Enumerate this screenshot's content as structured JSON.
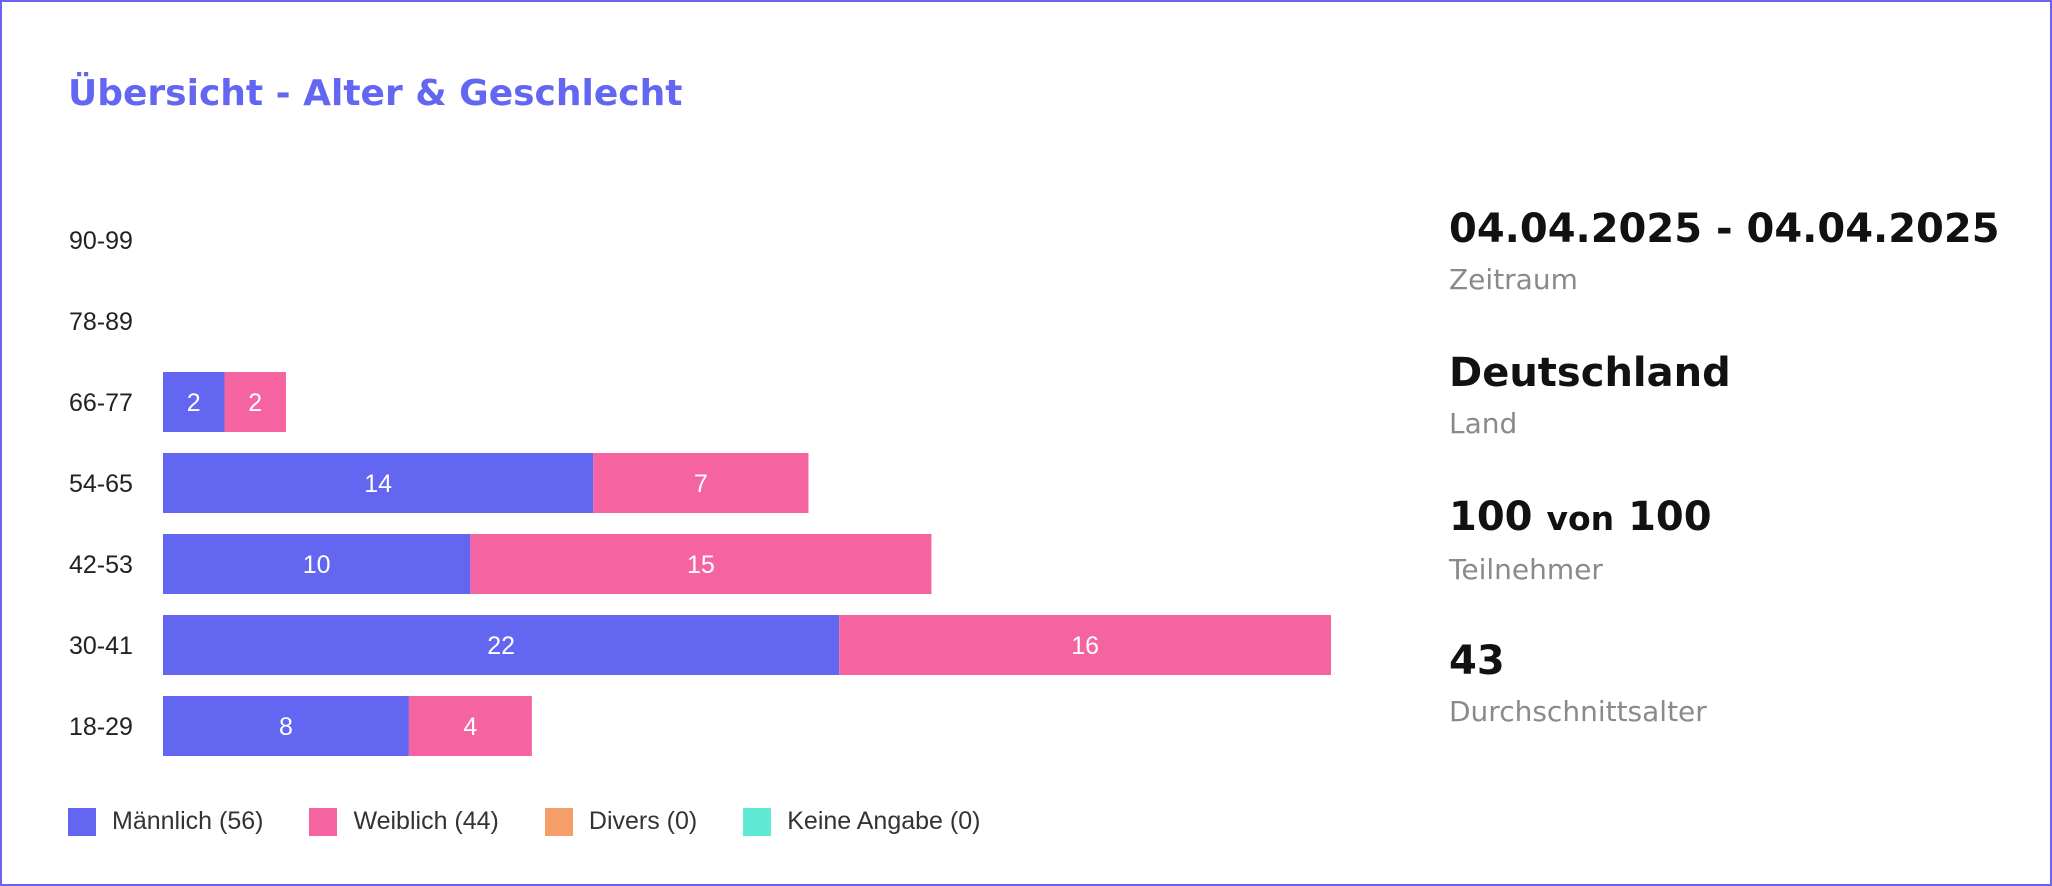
{
  "title": "Übersicht - Alter & Geschlecht",
  "colors": {
    "accent": "#6366f1",
    "male": "#6366f1",
    "female": "#f564a0",
    "diverse": "#f59e6a",
    "no_answer": "#5eead4"
  },
  "chart_data": {
    "type": "bar",
    "orientation": "horizontal",
    "stacked": true,
    "categories": [
      "90-99",
      "78-89",
      "66-77",
      "54-65",
      "42-53",
      "30-41",
      "18-29"
    ],
    "series": [
      {
        "name": "Männlich (56)",
        "color": "#6366f1",
        "values": [
          0,
          0,
          2,
          14,
          10,
          22,
          8
        ]
      },
      {
        "name": "Weiblich (44)",
        "color": "#f564a0",
        "values": [
          0,
          0,
          2,
          7,
          15,
          16,
          4
        ]
      },
      {
        "name": "Divers (0)",
        "color": "#f59e6a",
        "values": [
          0,
          0,
          0,
          0,
          0,
          0,
          0
        ]
      },
      {
        "name": "Keine Angabe (0)",
        "color": "#5eead4",
        "values": [
          0,
          0,
          0,
          0,
          0,
          0,
          0
        ]
      }
    ],
    "xlim": [
      0,
      38
    ],
    "grid": false,
    "legend_position": "bottom-left"
  },
  "stats": [
    {
      "value": "04.04.2025 - 04.04.2025",
      "label": "Zeitraum"
    },
    {
      "value": "Deutschland",
      "label": "Land"
    },
    {
      "value_main": "100",
      "value_mid": "von",
      "value_end": "100",
      "label": "Teilnehmer"
    },
    {
      "value": "43",
      "label": "Durchschnittsalter"
    }
  ]
}
